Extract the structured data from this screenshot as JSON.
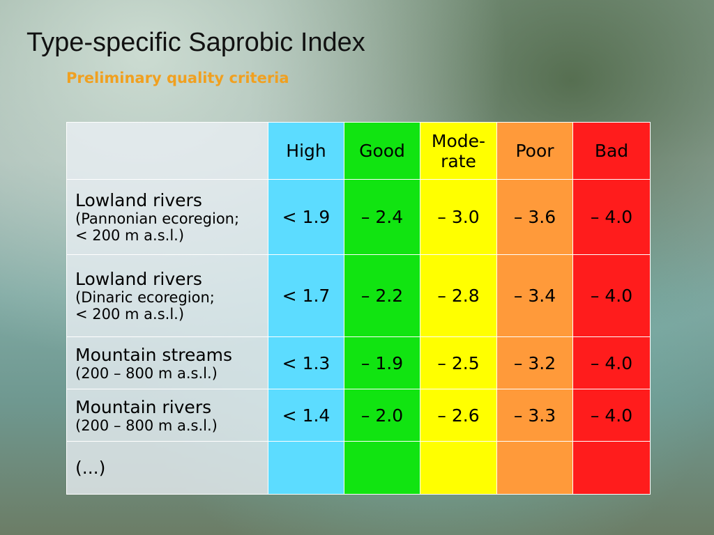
{
  "header": {
    "title": "Type-specific Saprobic Index",
    "subtitle": "Preliminary quality criteria"
  },
  "table": {
    "columns": [
      [
        "High"
      ],
      [
        "Good"
      ],
      [
        "Mode-",
        "rate"
      ],
      [
        "Poor"
      ],
      [
        "Bad"
      ]
    ],
    "rows": [
      {
        "label": [
          "Lowland rivers",
          "(Pannonian ecoregion;",
          "< 200 m a.s.l.)"
        ],
        "values": [
          "< 1.9",
          "– 2.4",
          "– 3.0",
          "– 3.6",
          "– 4.0"
        ]
      },
      {
        "label": [
          "Lowland rivers",
          "(Dinaric ecoregion;",
          "< 200 m a.s.l.)"
        ],
        "values": [
          "< 1.7",
          "– 2.2",
          "– 2.8",
          "– 3.4",
          "– 4.0"
        ]
      },
      {
        "label": [
          "Mountain streams",
          "(200 – 800 m a.s.l.)"
        ],
        "values": [
          "< 1.3",
          "– 1.9",
          "– 2.5",
          "– 3.2",
          "– 4.0"
        ]
      },
      {
        "label": [
          "Mountain rivers",
          "(200 – 800 m a.s.l.)"
        ],
        "values": [
          "< 1.4",
          "– 2.0",
          "– 2.6",
          "– 3.3",
          "– 4.0"
        ]
      },
      {
        "label": [
          "(...)"
        ]
      }
    ]
  }
}
